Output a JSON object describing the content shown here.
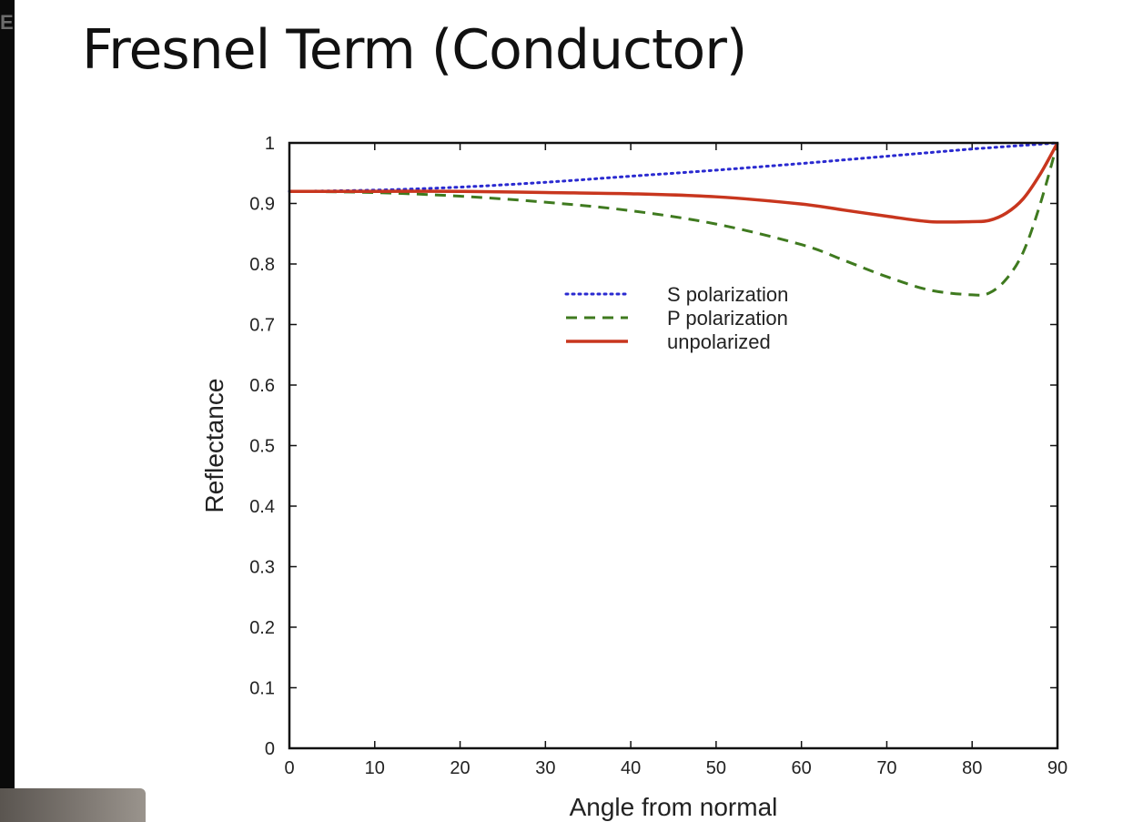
{
  "watermark": "E",
  "slide_title": "Fresnel Term (Conductor)",
  "colors": {
    "s_polarization": "#2a2ad0",
    "p_polarization": "#3f7a1f",
    "unpolarized": "#c8361e",
    "frame": "#111111"
  },
  "chart_data": {
    "type": "line",
    "title": "",
    "xlabel": "Angle from normal",
    "ylabel": "Reflectance",
    "xlim": [
      0,
      90
    ],
    "ylim": [
      0,
      1
    ],
    "x_ticks": [
      0,
      10,
      20,
      30,
      40,
      50,
      60,
      70,
      80,
      90
    ],
    "y_ticks": [
      0,
      0.1,
      0.2,
      0.3,
      0.4,
      0.5,
      0.6,
      0.7,
      0.8,
      0.9,
      1
    ],
    "y_tick_labels": [
      "0",
      "0.1",
      "0.2",
      "0.3",
      "0.4",
      "0.5",
      "0.6",
      "0.7",
      "0.8",
      "0.9",
      "1"
    ],
    "grid": false,
    "legend_position": "upper-center",
    "x": [
      0,
      10,
      20,
      30,
      40,
      50,
      60,
      65,
      70,
      75,
      80,
      82,
      84,
      86,
      88,
      90
    ],
    "series": [
      {
        "name": "S polarization",
        "style": "dotted",
        "values": [
          0.92,
          0.922,
          0.927,
          0.935,
          0.945,
          0.955,
          0.966,
          0.972,
          0.978,
          0.984,
          0.99,
          0.992,
          0.994,
          0.996,
          0.998,
          1.0
        ]
      },
      {
        "name": "P polarization",
        "style": "dashed",
        "values": [
          0.92,
          0.918,
          0.912,
          0.902,
          0.888,
          0.866,
          0.832,
          0.806,
          0.779,
          0.757,
          0.749,
          0.752,
          0.775,
          0.82,
          0.9,
          1.0
        ]
      },
      {
        "name": "unpolarized",
        "style": "solid",
        "values": [
          0.92,
          0.92,
          0.92,
          0.918,
          0.916,
          0.911,
          0.899,
          0.889,
          0.879,
          0.87,
          0.87,
          0.872,
          0.884,
          0.908,
          0.949,
          1.0
        ]
      }
    ]
  }
}
